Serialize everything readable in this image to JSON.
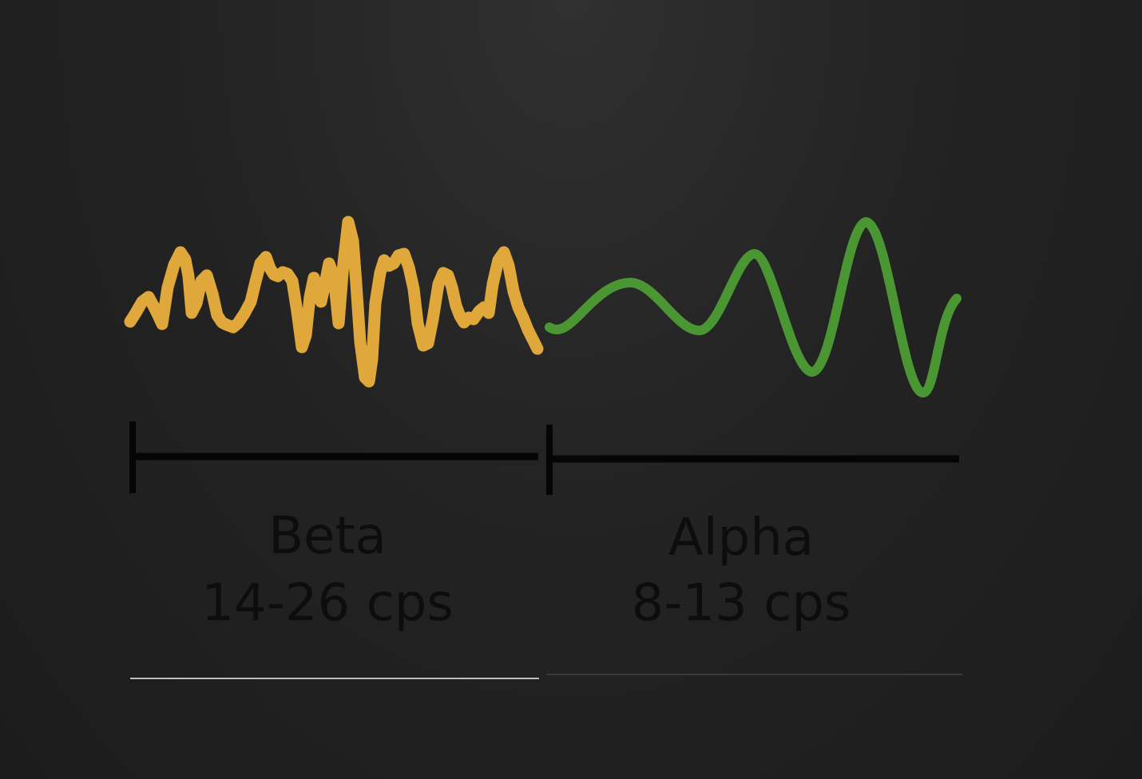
{
  "bands": [
    {
      "name": "Beta",
      "range": "14-26 cps",
      "color": "#e0a73a",
      "wave": "fast-irregular"
    },
    {
      "name": "Alpha",
      "range": "8-13 cps",
      "color": "#4a9633",
      "wave": "slow-sinusoid"
    }
  ],
  "colors": {
    "background": "#232323",
    "scale_bar": "#050505",
    "label_text": "#0d0d0d",
    "divider_beta": "#bdbdbd",
    "divider_alpha": "#3a3a3a"
  }
}
